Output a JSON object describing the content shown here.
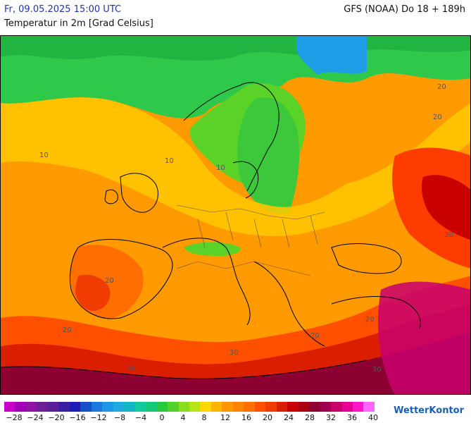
{
  "header": {
    "datetime": "Fr, 09.05.2025 15:00 UTC",
    "subtitle": "Temperatur in 2m [Grad Celsius]",
    "model": "GFS (NOAA) Do 18 + 189h"
  },
  "map_labels": [
    "10",
    "10",
    "10",
    "20",
    "20",
    "20",
    "20",
    "30",
    "30",
    "30",
    "30",
    "20",
    "20"
  ],
  "legend": {
    "colors": [
      "#c800c8",
      "#a000b4",
      "#8c14a0",
      "#6e1e96",
      "#5a1e96",
      "#3c1ea0",
      "#1e1eb4",
      "#1450c8",
      "#1e78dc",
      "#1e96e6",
      "#1eaadc",
      "#14b4c8",
      "#14c8a0",
      "#14c878",
      "#28c83c",
      "#50d228",
      "#8cdc1e",
      "#b4e614",
      "#ffd700",
      "#ffb400",
      "#ff9600",
      "#ff8200",
      "#ff6e00",
      "#ff5000",
      "#f03c00",
      "#dc1e00",
      "#c80000",
      "#aa0014",
      "#8c0032",
      "#a00050",
      "#c8006e",
      "#e60096",
      "#ff14c8",
      "#ff64ff"
    ],
    "ticks": [
      "−28",
      "−24",
      "−20",
      "−16",
      "−12",
      "−8",
      "−4",
      "0",
      "4",
      "8",
      "12",
      "16",
      "20",
      "24",
      "28",
      "32",
      "36",
      "40"
    ]
  },
  "brand": "WetterKontor"
}
